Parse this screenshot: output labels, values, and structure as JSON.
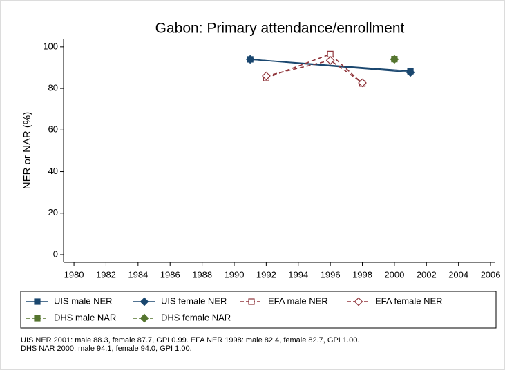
{
  "chart_data": {
    "type": "line",
    "title": "Gabon: Primary attendance/enrollment",
    "ylabel": "NER or NAR (%)",
    "xlim": [
      1979.35,
      2006.3
    ],
    "xticks": [
      1980,
      1982,
      1984,
      1986,
      1988,
      1990,
      1992,
      1994,
      1996,
      1998,
      2000,
      2002,
      2004,
      2006
    ],
    "ylim": [
      -3.65,
      103.6
    ],
    "yticks": [
      0,
      20,
      40,
      60,
      80,
      100
    ],
    "grid": false,
    "legend": "bottom",
    "series": [
      {
        "name": "UIS male NER",
        "color": "#1a476f",
        "marker": "square",
        "dash": false,
        "x": [
          1991,
          2001
        ],
        "values": [
          94,
          88.3
        ]
      },
      {
        "name": "UIS female NER",
        "color": "#1a476f",
        "marker": "diamond",
        "dash": false,
        "x": [
          1991,
          2001
        ],
        "values": [
          94,
          87.7
        ]
      },
      {
        "name": "EFA male NER",
        "color": "#90353b",
        "marker": "square-hollow",
        "dash": true,
        "x": [
          1992,
          1996,
          1998
        ],
        "values": [
          85,
          96.5,
          82.4
        ]
      },
      {
        "name": "EFA female NER",
        "color": "#90353b",
        "marker": "diamond-hollow",
        "dash": true,
        "x": [
          1992,
          1996,
          1998
        ],
        "values": [
          86,
          93.5,
          82.7
        ]
      },
      {
        "name": "DHS male NAR",
        "color": "#55752f",
        "marker": "square",
        "dash": true,
        "x": [
          2000
        ],
        "values": [
          94.1
        ]
      },
      {
        "name": "DHS female NAR",
        "color": "#55752f",
        "marker": "diamond",
        "dash": true,
        "x": [
          2000
        ],
        "values": [
          94.0
        ]
      }
    ],
    "note": [
      "UIS NER 2001: male 88.3, female 87.7, GPI 0.99. EFA NER 1998: male 82.4, female 82.7, GPI 1.00.",
      "DHS NAR 2000: male 94.1, female 94.0, GPI 1.00."
    ]
  }
}
